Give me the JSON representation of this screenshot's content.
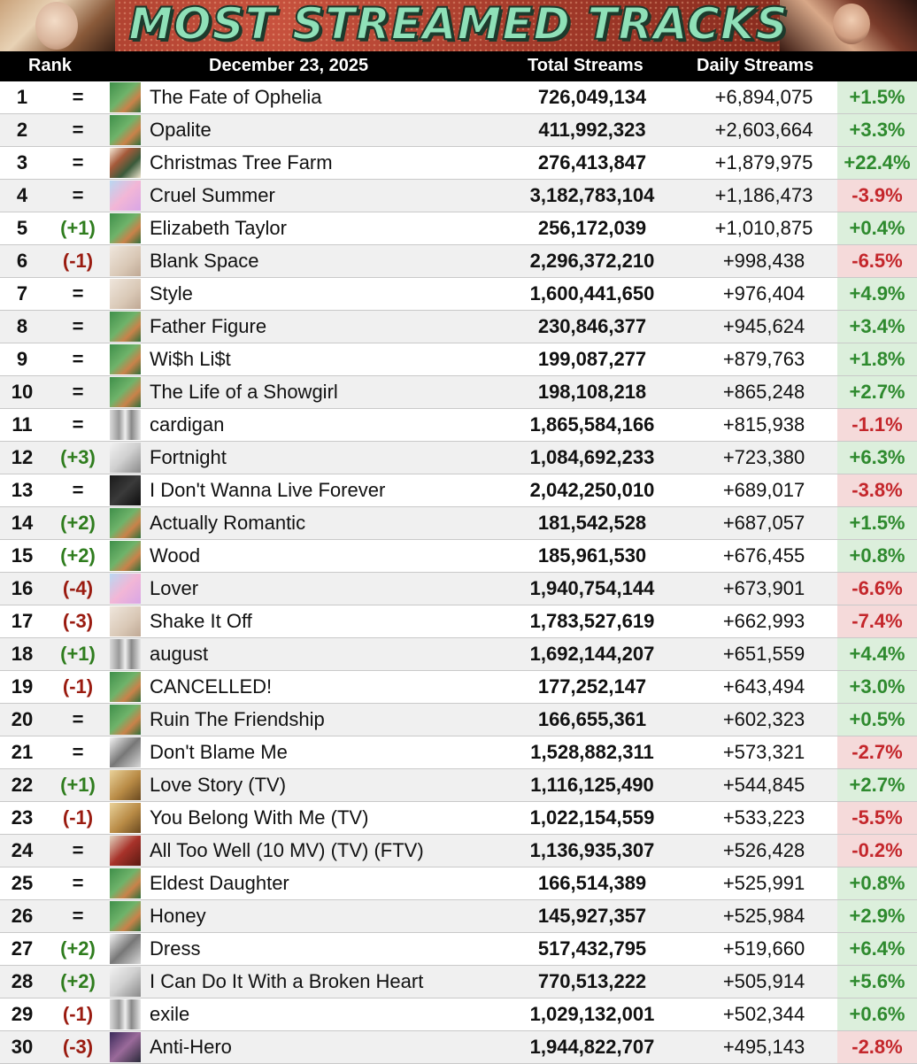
{
  "banner": {
    "title": "MOST STREAMED TRACKS"
  },
  "header": {
    "rank": "Rank",
    "date": "December 23, 2025",
    "total": "Total Streams",
    "daily": "Daily Streams"
  },
  "rows": [
    {
      "rank": "1",
      "move": "=",
      "art": "green",
      "title": "The Fate of Ophelia",
      "total": "726,049,134",
      "daily": "+6,894,075",
      "pct": "+1.5%"
    },
    {
      "rank": "2",
      "move": "=",
      "art": "green",
      "title": "Opalite",
      "total": "411,992,323",
      "daily": "+2,603,664",
      "pct": "+3.3%"
    },
    {
      "rank": "3",
      "move": "=",
      "art": "xmas",
      "title": "Christmas Tree Farm",
      "total": "276,413,847",
      "daily": "+1,879,975",
      "pct": "+22.4%"
    },
    {
      "rank": "4",
      "move": "=",
      "art": "pink",
      "title": "Cruel Summer",
      "total": "3,182,783,104",
      "daily": "+1,186,473",
      "pct": "-3.9%"
    },
    {
      "rank": "5",
      "move": "(+1)",
      "art": "green",
      "title": "Elizabeth Taylor",
      "total": "256,172,039",
      "daily": "+1,010,875",
      "pct": "+0.4%"
    },
    {
      "rank": "6",
      "move": "(-1)",
      "art": "beige",
      "title": "Blank Space",
      "total": "2,296,372,210",
      "daily": "+998,438",
      "pct": "-6.5%"
    },
    {
      "rank": "7",
      "move": "=",
      "art": "beige",
      "title": "Style",
      "total": "1,600,441,650",
      "daily": "+976,404",
      "pct": "+4.9%"
    },
    {
      "rank": "8",
      "move": "=",
      "art": "green",
      "title": "Father Figure",
      "total": "230,846,377",
      "daily": "+945,624",
      "pct": "+3.4%"
    },
    {
      "rank": "9",
      "move": "=",
      "art": "green",
      "title": "Wi$h Li$t",
      "total": "199,087,277",
      "daily": "+879,763",
      "pct": "+1.8%"
    },
    {
      "rank": "10",
      "move": "=",
      "art": "green",
      "title": "The Life of a Showgirl",
      "total": "198,108,218",
      "daily": "+865,248",
      "pct": "+2.7%"
    },
    {
      "rank": "11",
      "move": "=",
      "art": "grey",
      "title": "cardigan",
      "total": "1,865,584,166",
      "daily": "+815,938",
      "pct": "-1.1%"
    },
    {
      "rank": "12",
      "move": "(+3)",
      "art": "ttpd",
      "title": "Fortnight",
      "total": "1,084,692,233",
      "daily": "+723,380",
      "pct": "+6.3%"
    },
    {
      "rank": "13",
      "move": "=",
      "art": "dark",
      "title": "I Don't Wanna Live Forever",
      "total": "2,042,250,010",
      "daily": "+689,017",
      "pct": "-3.8%"
    },
    {
      "rank": "14",
      "move": "(+2)",
      "art": "green",
      "title": "Actually Romantic",
      "total": "181,542,528",
      "daily": "+687,057",
      "pct": "+1.5%"
    },
    {
      "rank": "15",
      "move": "(+2)",
      "art": "green",
      "title": "Wood",
      "total": "185,961,530",
      "daily": "+676,455",
      "pct": "+0.8%"
    },
    {
      "rank": "16",
      "move": "(-4)",
      "art": "pink",
      "title": "Lover",
      "total": "1,940,754,144",
      "daily": "+673,901",
      "pct": "-6.6%"
    },
    {
      "rank": "17",
      "move": "(-3)",
      "art": "beige",
      "title": "Shake It Off",
      "total": "1,783,527,619",
      "daily": "+662,993",
      "pct": "-7.4%"
    },
    {
      "rank": "18",
      "move": "(+1)",
      "art": "grey",
      "title": "august",
      "total": "1,692,144,207",
      "daily": "+651,559",
      "pct": "+4.4%"
    },
    {
      "rank": "19",
      "move": "(-1)",
      "art": "green",
      "title": "CANCELLED!",
      "total": "177,252,147",
      "daily": "+643,494",
      "pct": "+3.0%"
    },
    {
      "rank": "20",
      "move": "=",
      "art": "green",
      "title": "Ruin The Friendship",
      "total": "166,655,361",
      "daily": "+602,323",
      "pct": "+0.5%"
    },
    {
      "rank": "21",
      "move": "=",
      "art": "bw",
      "title": "Don't Blame Me",
      "total": "1,528,882,311",
      "daily": "+573,321",
      "pct": "-2.7%"
    },
    {
      "rank": "22",
      "move": "(+1)",
      "art": "gold",
      "title": "Love Story (TV)",
      "total": "1,116,125,490",
      "daily": "+544,845",
      "pct": "+2.7%"
    },
    {
      "rank": "23",
      "move": "(-1)",
      "art": "gold",
      "title": "You Belong With Me (TV)",
      "total": "1,022,154,559",
      "daily": "+533,223",
      "pct": "-5.5%"
    },
    {
      "rank": "24",
      "move": "=",
      "art": "red",
      "title": "All Too Well (10 MV) (TV) (FTV)",
      "total": "1,136,935,307",
      "daily": "+526,428",
      "pct": "-0.2%"
    },
    {
      "rank": "25",
      "move": "=",
      "art": "green",
      "title": "Eldest Daughter",
      "total": "166,514,389",
      "daily": "+525,991",
      "pct": "+0.8%"
    },
    {
      "rank": "26",
      "move": "=",
      "art": "green",
      "title": "Honey",
      "total": "145,927,357",
      "daily": "+525,984",
      "pct": "+2.9%"
    },
    {
      "rank": "27",
      "move": "(+2)",
      "art": "bw",
      "title": "Dress",
      "total": "517,432,795",
      "daily": "+519,660",
      "pct": "+6.4%"
    },
    {
      "rank": "28",
      "move": "(+2)",
      "art": "ttpd",
      "title": "I Can Do It With a Broken Heart",
      "total": "770,513,222",
      "daily": "+505,914",
      "pct": "+5.6%"
    },
    {
      "rank": "29",
      "move": "(-1)",
      "art": "grey",
      "title": "exile",
      "total": "1,029,132,001",
      "daily": "+502,344",
      "pct": "+0.6%"
    },
    {
      "rank": "30",
      "move": "(-3)",
      "art": "mid",
      "title": "Anti-Hero",
      "total": "1,944,822,707",
      "daily": "+495,143",
      "pct": "-2.8%"
    }
  ]
}
